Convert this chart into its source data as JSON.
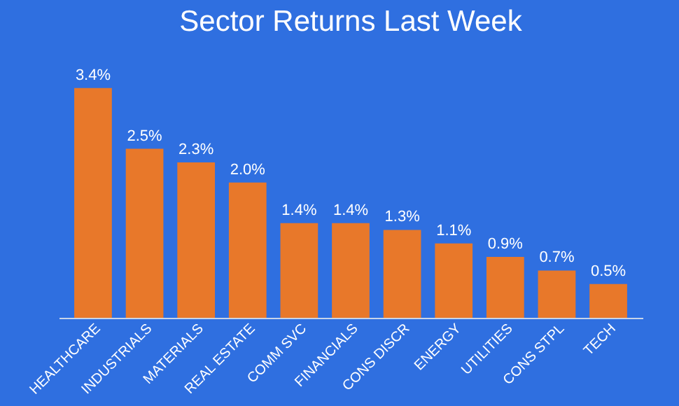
{
  "chart_data": {
    "type": "bar",
    "title": "Sector Returns Last Week",
    "categories": [
      "HEALTHCARE",
      "INDUSTRIALS",
      "MATERIALS",
      "REAL ESTATE",
      "COMM SVC",
      "FINANCIALS",
      "CONS DISCR",
      "ENERGY",
      "UTILITIES",
      "CONS STPL",
      "TECH"
    ],
    "values": [
      3.4,
      2.5,
      2.3,
      2.0,
      1.4,
      1.4,
      1.3,
      1.1,
      0.9,
      0.7,
      0.5
    ],
    "value_labels": [
      "3.4%",
      "2.5%",
      "2.3%",
      "2.0%",
      "1.4%",
      "1.4%",
      "1.3%",
      "1.1%",
      "0.9%",
      "0.7%",
      "0.5%"
    ],
    "color": "#e8782a"
  }
}
